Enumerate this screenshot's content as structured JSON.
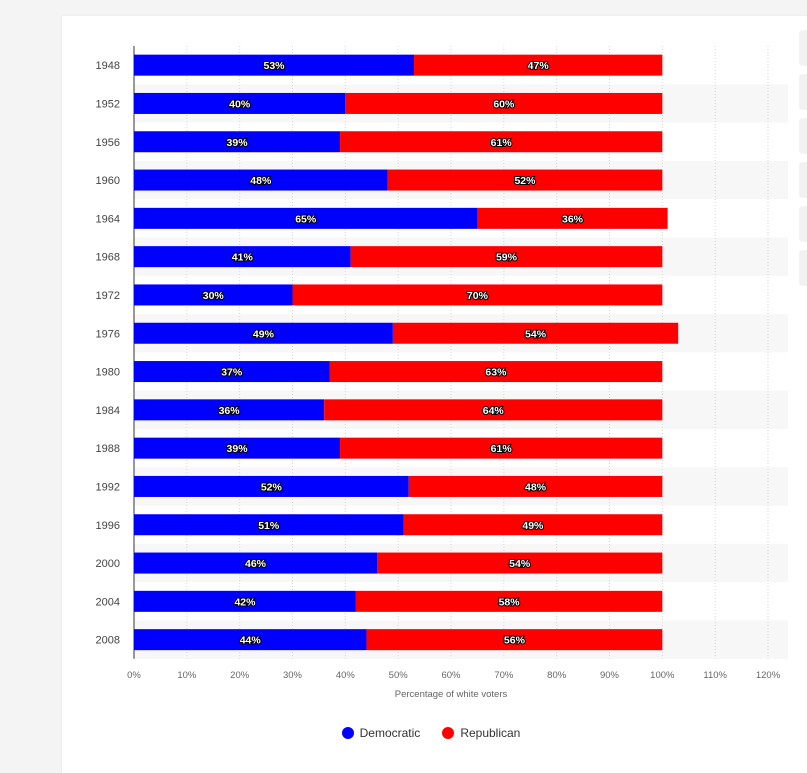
{
  "chart_data": {
    "type": "bar",
    "orientation": "horizontal",
    "stacked": true,
    "categories": [
      "1948",
      "1952",
      "1956",
      "1960",
      "1964",
      "1968",
      "1972",
      "1976",
      "1980",
      "1984",
      "1988",
      "1992",
      "1996",
      "2000",
      "2004",
      "2008"
    ],
    "series": [
      {
        "name": "Democratic",
        "color": "#0000ff",
        "values": [
          53,
          40,
          39,
          48,
          65,
          41,
          30,
          49,
          37,
          36,
          39,
          52,
          51,
          46,
          42,
          44
        ]
      },
      {
        "name": "Republican",
        "color": "#ff0000",
        "values": [
          47,
          60,
          61,
          52,
          36,
          59,
          70,
          54,
          63,
          64,
          61,
          48,
          49,
          54,
          58,
          56
        ]
      }
    ],
    "value_suffix": "%",
    "xlabel": "Percentage of white voters",
    "ylabel": "",
    "xlim": [
      0,
      120
    ],
    "xticks": [
      "0%",
      "10%",
      "20%",
      "30%",
      "40%",
      "50%",
      "60%",
      "70%",
      "80%",
      "90%",
      "100%",
      "110%",
      "120%"
    ],
    "grid": true,
    "legend_position": "bottom-center"
  }
}
